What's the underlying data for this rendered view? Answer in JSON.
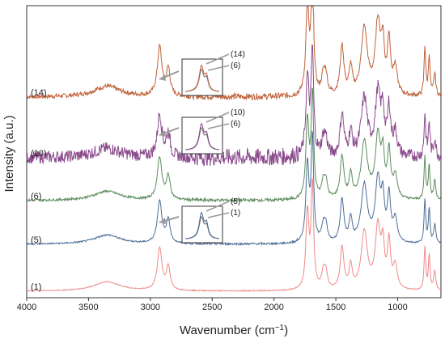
{
  "chart_data": {
    "type": "line",
    "xlabel": "Wavenumber (cm",
    "xlabel_sup": "−1",
    "xlabel_close": ")",
    "ylabel": "Intensity (a.u.)",
    "xlim": [
      4000,
      650
    ],
    "x_reversed": true,
    "xticks": [
      4000,
      3500,
      3000,
      2500,
      2000,
      1500,
      1000
    ],
    "y_ticks_shown": false,
    "grid": false,
    "series": [
      {
        "name": "(14)",
        "color": "#c0623a",
        "offset": 4,
        "noise": 0.05
      },
      {
        "name": "(10)",
        "color": "#8a4a8c",
        "offset": 3,
        "noise": 0.16
      },
      {
        "name": "(6)",
        "color": "#5c8c5e",
        "offset": 2,
        "noise": 0.03
      },
      {
        "name": "(5)",
        "color": "#4d6e98",
        "offset": 1,
        "noise": 0.02
      },
      {
        "name": "(1)",
        "color": "#ef8a88",
        "offset": 0,
        "noise": 0.01
      }
    ],
    "peaks_cm1": [
      {
        "x": 3350,
        "height": 0.12,
        "width": 130
      },
      {
        "x": 2925,
        "height": 0.55,
        "width": 22
      },
      {
        "x": 2855,
        "height": 0.3,
        "width": 18
      },
      {
        "x": 1730,
        "height": 1.0,
        "width": 15
      },
      {
        "x": 1690,
        "height": 1.35,
        "width": 12
      },
      {
        "x": 1600,
        "height": 0.22,
        "width": 18
      },
      {
        "x": 1580,
        "height": 0.18,
        "width": 15
      },
      {
        "x": 1450,
        "height": 0.55,
        "width": 18
      },
      {
        "x": 1380,
        "height": 0.3,
        "width": 15
      },
      {
        "x": 1270,
        "height": 0.75,
        "width": 30
      },
      {
        "x": 1160,
        "height": 0.8,
        "width": 25
      },
      {
        "x": 1120,
        "height": 0.5,
        "width": 15
      },
      {
        "x": 1070,
        "height": 0.6,
        "width": 15
      },
      {
        "x": 1020,
        "height": 0.3,
        "width": 20
      },
      {
        "x": 780,
        "height": 0.55,
        "width": 8
      },
      {
        "x": 745,
        "height": 0.45,
        "width": 8
      },
      {
        "x": 700,
        "height": 0.25,
        "width": 10
      }
    ],
    "insets": [
      {
        "series_top": "(14)",
        "series_bottom": "(6)",
        "label_top": "(14)",
        "label_bottom": "(6)"
      },
      {
        "series_top": "(10)",
        "series_bottom": "(6)",
        "label_top": "(10)",
        "label_bottom": "(6)"
      },
      {
        "series_top": "(5)",
        "series_bottom": "(1)",
        "label_top": "(5)",
        "label_bottom": "(1)"
      }
    ]
  }
}
